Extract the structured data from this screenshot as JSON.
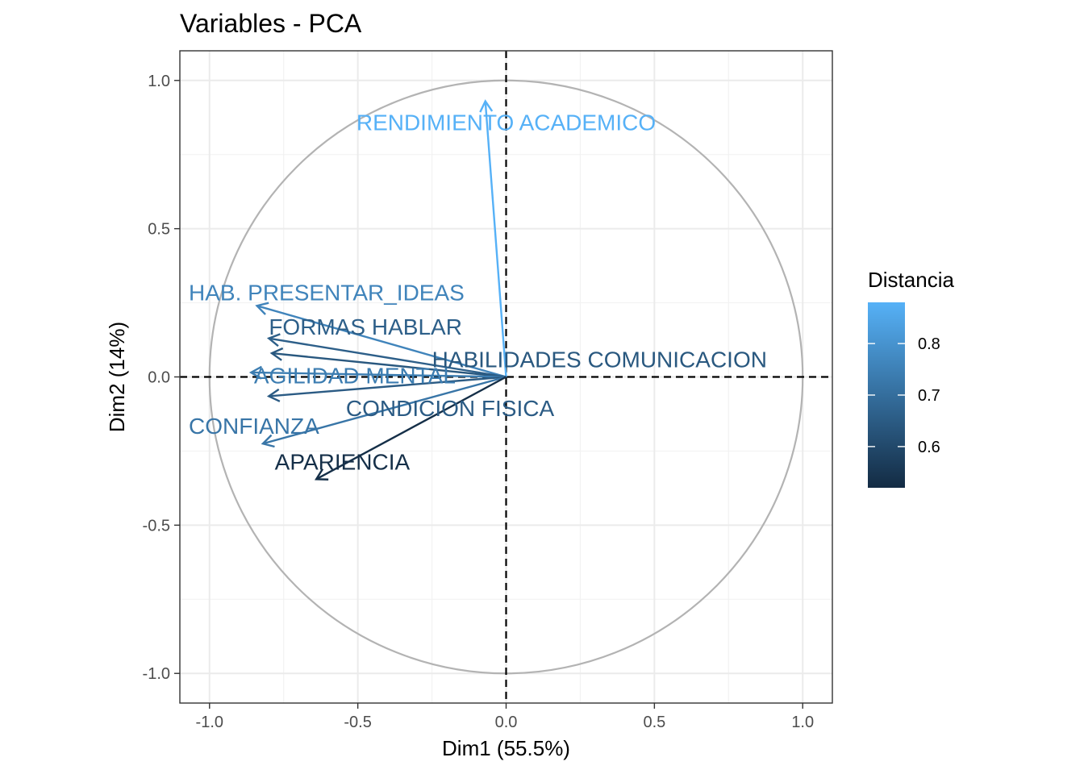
{
  "chart_data": {
    "type": "scatter",
    "subtype": "pca-variable-correlation-circle",
    "title": "Variables - PCA",
    "xlabel": "Dim1 (55.5%)",
    "ylabel": "Dim2 (14%)",
    "xlim": [
      -1.1,
      1.1
    ],
    "ylim": [
      -1.1,
      1.1
    ],
    "x_ticks": [
      -1.0,
      -0.5,
      0.0,
      0.5,
      1.0
    ],
    "x_tick_labels": [
      "-1.0",
      "-0.5",
      "0.0",
      "0.5",
      "1.0"
    ],
    "y_ticks": [
      -1.0,
      -0.5,
      0.0,
      0.5,
      1.0
    ],
    "y_tick_labels": [
      "-1.0",
      "-0.5",
      "0.0",
      "0.5",
      "1.0"
    ],
    "grid": true,
    "unit_circle": true,
    "reference_lines": {
      "x": 0,
      "y": 0,
      "style": "dashed"
    },
    "legend": {
      "title": "Distancia",
      "placement": "right",
      "type": "continuous-colorbar",
      "range": [
        0.52,
        0.88
      ],
      "ticks": [
        0.6,
        0.7,
        0.8
      ],
      "tick_labels": [
        "0.6",
        "0.7",
        "0.8"
      ],
      "color_low": "#132b43",
      "color_high": "#56b1f7"
    },
    "variables": [
      {
        "name": "RENDIMIENTO ACADEMICO",
        "x": -0.07,
        "y": 0.93,
        "distancia": 0.88,
        "label_x": 0.0,
        "label_y": 0.86,
        "label_anchor": "middle"
      },
      {
        "name": "HAB. PRESENTAR_IDEAS",
        "x": -0.84,
        "y": 0.24,
        "distancia": 0.76,
        "label_x": -1.07,
        "label_y": 0.285,
        "label_anchor": "start"
      },
      {
        "name": "FORMAS HABLAR",
        "x": -0.8,
        "y": 0.13,
        "distancia": 0.66,
        "label_x": -0.8,
        "label_y": 0.17,
        "label_anchor": "start"
      },
      {
        "name": "HABILIDADES COMUNICACION",
        "x": -0.79,
        "y": 0.08,
        "distancia": 0.64,
        "label_x": -0.25,
        "label_y": 0.06,
        "label_anchor": "start"
      },
      {
        "name": "AGILIDAD MENTAL",
        "x": -0.86,
        "y": 0.015,
        "distancia": 0.74,
        "label_x": -0.85,
        "label_y": 0.005,
        "label_anchor": "start"
      },
      {
        "name": "CONDICION FISICA",
        "x": -0.8,
        "y": -0.065,
        "distancia": 0.65,
        "label_x": -0.54,
        "label_y": -0.105,
        "label_anchor": "start"
      },
      {
        "name": "CONFIANZA",
        "x": -0.82,
        "y": -0.225,
        "distancia": 0.72,
        "label_x": -1.07,
        "label_y": -0.165,
        "label_anchor": "start"
      },
      {
        "name": "APARIENCIA",
        "x": -0.64,
        "y": -0.345,
        "distancia": 0.53,
        "label_x": -0.78,
        "label_y": -0.285,
        "label_anchor": "start"
      }
    ]
  }
}
